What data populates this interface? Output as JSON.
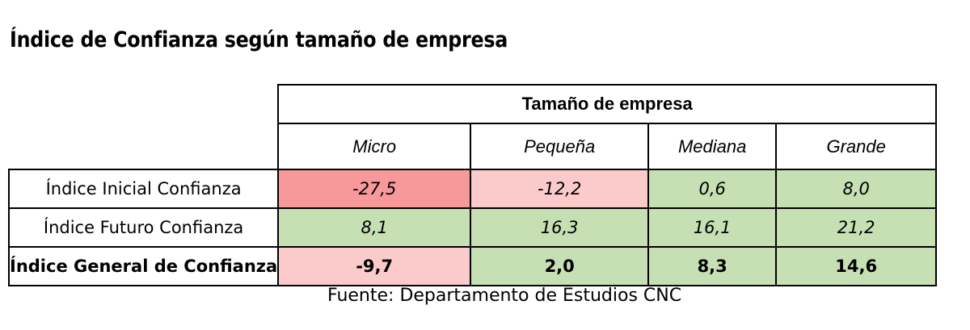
{
  "title": "Índice de Confianza según tamaño de empresa",
  "table": {
    "group_header": "Tamaño de empresa",
    "columns": [
      "Micro",
      "Pequeña",
      "Mediana",
      "Grande"
    ],
    "rows": [
      {
        "label": "Índice Inicial Confianza",
        "bold": false,
        "values": [
          "-27,5",
          "-12,2",
          "0,6",
          "8,0"
        ],
        "colors": [
          "#f7999b",
          "#fbcbcc",
          "#c6e0b4",
          "#c6e0b4"
        ]
      },
      {
        "label": "Índice Futuro Confianza",
        "bold": false,
        "values": [
          "8,1",
          "16,3",
          "16,1",
          "21,2"
        ],
        "colors": [
          "#c6e0b4",
          "#c6e0b4",
          "#c6e0b4",
          "#c6e0b4"
        ]
      },
      {
        "label": "Índice General de Confianza",
        "bold": true,
        "values": [
          "-9,7",
          "2,0",
          "8,3",
          "14,6"
        ],
        "colors": [
          "#fbcbcc",
          "#c6e0b4",
          "#c6e0b4",
          "#c6e0b4"
        ]
      }
    ]
  },
  "source": "Fuente: Departamento de Estudios CNC"
}
